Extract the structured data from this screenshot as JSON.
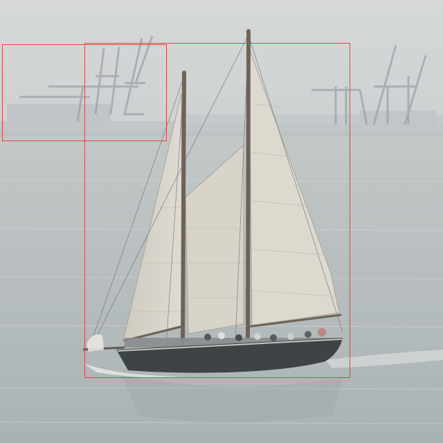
{
  "image": {
    "subject": "sailboat",
    "colors": {
      "sky": "#d3d6d6",
      "water": "#b9c0c1",
      "sail": "#d9d6cc",
      "hull": "#3e4446",
      "crane": "#9aa3ab",
      "box_outline": "#e0443e"
    }
  },
  "annotations": [
    {
      "label": ""
    },
    {
      "label": ""
    }
  ]
}
